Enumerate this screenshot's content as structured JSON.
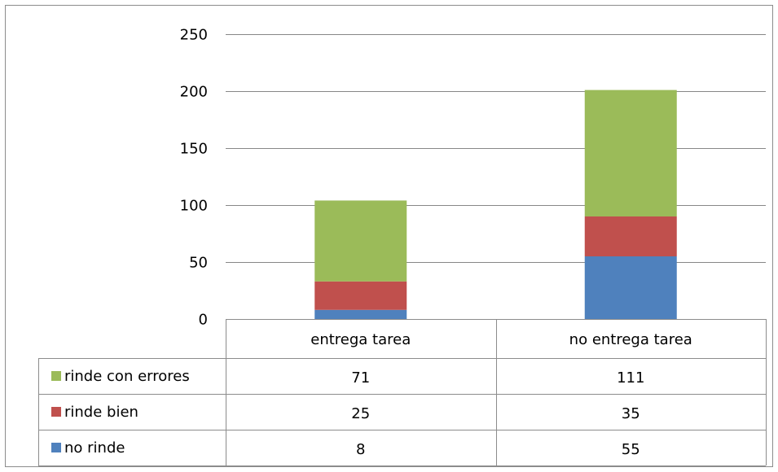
{
  "chart_data": {
    "type": "bar",
    "stacked": true,
    "categories": [
      "entrega tarea",
      "no entrega tarea"
    ],
    "series": [
      {
        "name": "no rinde",
        "values": [
          8,
          55
        ],
        "color": "#4f81bd"
      },
      {
        "name": "rinde bien",
        "values": [
          25,
          35
        ],
        "color": "#c0504d"
      },
      {
        "name": "rinde con errores",
        "values": [
          71,
          111
        ],
        "color": "#9bbb59"
      }
    ],
    "ylim": [
      0,
      250
    ],
    "yticks": [
      0,
      50,
      100,
      150,
      200,
      250
    ],
    "grid": true,
    "data_table": true,
    "table_row_order": [
      "rinde con errores",
      "rinde bien",
      "no rinde"
    ]
  }
}
